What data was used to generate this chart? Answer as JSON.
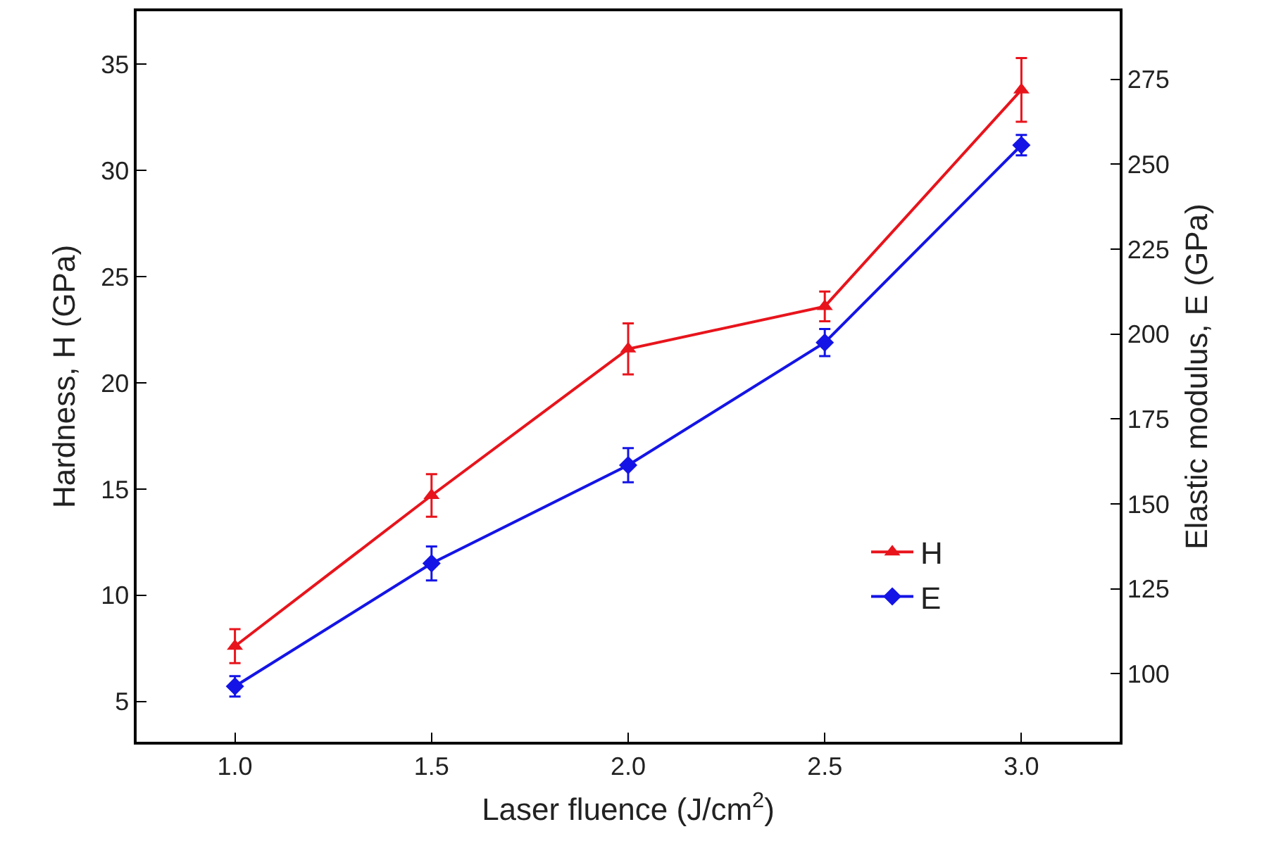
{
  "chart_data": {
    "type": "line",
    "xlabel": "Laser fluence (J/cm$^{2}$)",
    "ylabel": "Hardness, H (GPa)",
    "y2label": "Elastic modulus, E (GPa)",
    "x": [
      1.0,
      1.5,
      2.0,
      2.5,
      3.0
    ],
    "series": [
      {
        "name": "H",
        "color": "#e8141c",
        "marker": "triangle",
        "values": [
          7.6,
          14.7,
          21.6,
          23.6,
          33.8
        ],
        "errors": [
          0.8,
          1.0,
          1.2,
          0.7,
          1.5
        ]
      },
      {
        "name": "E",
        "color": "#1414e6",
        "marker": "diamond",
        "axis": "y2",
        "values": [
          96.3,
          132.5,
          161.4,
          197.5,
          255.6
        ],
        "errors": [
          3,
          5,
          5,
          4,
          3
        ]
      }
    ],
    "xlim": [
      0.75,
      3.25
    ],
    "xticks": [
      {
        "value": 1,
        "label": "1.0"
      },
      1.5,
      {
        "value": 2,
        "label": "2.0"
      },
      2.5,
      {
        "value": 3,
        "label": "3.0"
      }
    ],
    "ylim": [
      3.1,
      37.5
    ],
    "yticks": [
      5,
      10,
      15,
      20,
      25,
      30,
      35
    ],
    "y2lim": [
      80,
      295
    ],
    "y2ticks": [
      100,
      125,
      150,
      175,
      200,
      225,
      250,
      275
    ],
    "grid": false,
    "legend": "bottom right",
    "line_style": "solid"
  }
}
